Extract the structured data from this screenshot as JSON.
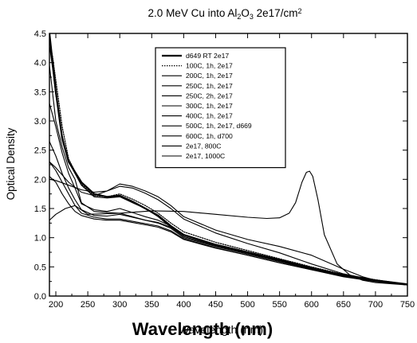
{
  "title": {
    "parts": [
      {
        "text": "2.0 MeV Cu into Al",
        "kind": "normal"
      },
      {
        "text": "2",
        "kind": "sub"
      },
      {
        "text": "O",
        "kind": "normal"
      },
      {
        "text": "3",
        "kind": "sub"
      },
      {
        "text": " 2e17/cm",
        "kind": "normal"
      },
      {
        "text": "2",
        "kind": "sup"
      }
    ]
  },
  "chart_data": {
    "type": "line",
    "title": "2.0 MeV Cu into Al2O3 2e17/cm2",
    "xlabel": "Wavelength (nm)",
    "xlabel_overprint": "Wavelength (nm)",
    "ylabel": "Optical Density",
    "xlim": [
      190,
      750
    ],
    "ylim": [
      0.0,
      4.5
    ],
    "xticks": [
      200,
      250,
      300,
      350,
      400,
      450,
      500,
      550,
      600,
      650,
      700,
      750
    ],
    "yticks": [
      0.0,
      0.5,
      1.0,
      1.5,
      2.0,
      2.5,
      3.0,
      3.5,
      4.0,
      4.5
    ],
    "ytick_labels": [
      "0.0",
      "0.5",
      "1.0",
      "1.5",
      "2.0",
      "2.5",
      "3.0",
      "3.5",
      "4.0",
      "4.5"
    ],
    "grid": false,
    "legend_position": "top-center",
    "line_color": "#000000",
    "series": [
      {
        "name": "d649 RT 2e17",
        "style": "solid-bold",
        "x": [
          190,
          195,
          200,
          210,
          220,
          240,
          260,
          280,
          300,
          320,
          340,
          360,
          380,
          400,
          450,
          500,
          550,
          600,
          650,
          700,
          750
        ],
        "y": [
          4.5,
          4.0,
          3.5,
          2.7,
          2.3,
          1.95,
          1.75,
          1.7,
          1.72,
          1.62,
          1.5,
          1.38,
          1.2,
          1.05,
          0.88,
          0.75,
          0.62,
          0.48,
          0.36,
          0.27,
          0.2
        ]
      },
      {
        "name": "100C, 1h, 2e17",
        "style": "dotted",
        "x": [
          190,
          195,
          200,
          210,
          220,
          240,
          260,
          280,
          300,
          320,
          340,
          360,
          380,
          400,
          450,
          500,
          550,
          600,
          650,
          700,
          750
        ],
        "y": [
          4.4,
          4.1,
          3.7,
          2.9,
          2.35,
          1.92,
          1.72,
          1.7,
          1.75,
          1.66,
          1.55,
          1.42,
          1.25,
          1.1,
          0.92,
          0.78,
          0.64,
          0.5,
          0.37,
          0.28,
          0.2
        ]
      },
      {
        "name": "200C, 1h, 2e17",
        "style": "solid",
        "x": [
          190,
          195,
          200,
          210,
          220,
          240,
          260,
          280,
          300,
          320,
          340,
          360,
          380,
          400,
          450,
          500,
          550,
          600,
          650,
          700,
          750
        ],
        "y": [
          4.3,
          3.9,
          3.45,
          2.75,
          2.3,
          1.9,
          1.7,
          1.68,
          1.7,
          1.6,
          1.5,
          1.36,
          1.18,
          1.05,
          0.88,
          0.75,
          0.61,
          0.48,
          0.36,
          0.27,
          0.2
        ]
      },
      {
        "name": "250C, 1h, 2e17",
        "style": "solid",
        "x": [
          190,
          200,
          210,
          220,
          230,
          240,
          260,
          280,
          300,
          320,
          340,
          360,
          380,
          400,
          450,
          500,
          550,
          600,
          650,
          700,
          750
        ],
        "y": [
          3.95,
          3.0,
          2.55,
          2.2,
          2.0,
          1.6,
          1.45,
          1.43,
          1.42,
          1.36,
          1.3,
          1.26,
          1.18,
          1.02,
          0.86,
          0.73,
          0.6,
          0.47,
          0.35,
          0.26,
          0.19
        ]
      },
      {
        "name": "250C, 2h, 2e17",
        "style": "solid",
        "x": [
          190,
          200,
          210,
          220,
          230,
          240,
          260,
          280,
          300,
          320,
          340,
          360,
          380,
          400,
          450,
          500,
          550,
          600,
          650,
          700,
          750
        ],
        "y": [
          3.3,
          2.9,
          2.45,
          2.1,
          1.85,
          1.58,
          1.48,
          1.45,
          1.5,
          1.43,
          1.36,
          1.3,
          1.2,
          1.04,
          0.88,
          0.75,
          0.61,
          0.48,
          0.36,
          0.27,
          0.2
        ]
      },
      {
        "name": "300C, 1h, 2e17",
        "style": "solid",
        "x": [
          190,
          200,
          210,
          220,
          230,
          240,
          260,
          280,
          300,
          320,
          340,
          360,
          380,
          400,
          450,
          500,
          550,
          600,
          650,
          700,
          750
        ],
        "y": [
          2.65,
          2.4,
          2.1,
          1.85,
          1.65,
          1.48,
          1.38,
          1.37,
          1.4,
          1.35,
          1.3,
          1.25,
          1.16,
          1.0,
          0.85,
          0.72,
          0.59,
          0.46,
          0.34,
          0.26,
          0.19
        ]
      },
      {
        "name": "400C, 1h, 2e17",
        "style": "solid",
        "x": [
          190,
          200,
          210,
          220,
          230,
          240,
          260,
          280,
          300,
          320,
          340,
          360,
          380,
          400,
          450,
          500,
          550,
          600,
          650,
          700,
          750
        ],
        "y": [
          2.3,
          2.15,
          1.95,
          1.75,
          1.55,
          1.42,
          1.35,
          1.32,
          1.32,
          1.28,
          1.24,
          1.2,
          1.12,
          0.98,
          0.83,
          0.7,
          0.57,
          0.45,
          0.34,
          0.25,
          0.19
        ]
      },
      {
        "name": "500C, 1h, 2e17, d669",
        "style": "solid",
        "x": [
          190,
          200,
          210,
          220,
          230,
          240,
          260,
          280,
          300,
          320,
          340,
          360,
          380,
          400,
          450,
          500,
          550,
          600,
          650,
          700,
          750
        ],
        "y": [
          2.05,
          1.95,
          1.75,
          1.58,
          1.45,
          1.38,
          1.32,
          1.3,
          1.3,
          1.26,
          1.22,
          1.18,
          1.1,
          0.97,
          0.82,
          0.7,
          0.57,
          0.45,
          0.33,
          0.25,
          0.19
        ]
      },
      {
        "name": "600C, 1h, d700",
        "style": "solid",
        "x": [
          190,
          200,
          220,
          240,
          260,
          280,
          300,
          320,
          340,
          360,
          380,
          400,
          450,
          500,
          550,
          600,
          650,
          700,
          750
        ],
        "y": [
          2.0,
          1.98,
          1.9,
          1.82,
          1.78,
          1.8,
          1.88,
          1.85,
          1.76,
          1.65,
          1.5,
          1.32,
          1.08,
          0.9,
          0.74,
          0.55,
          0.38,
          0.27,
          0.2
        ]
      },
      {
        "name": "2e17, 800C",
        "style": "solid",
        "x": [
          190,
          200,
          220,
          240,
          260,
          280,
          300,
          320,
          340,
          360,
          380,
          400,
          450,
          500,
          550,
          600,
          650,
          680,
          700,
          750
        ],
        "y": [
          2.3,
          2.2,
          1.95,
          1.78,
          1.72,
          1.8,
          1.92,
          1.88,
          1.8,
          1.7,
          1.55,
          1.36,
          1.13,
          0.97,
          0.85,
          0.7,
          0.46,
          0.33,
          0.27,
          0.2
        ]
      },
      {
        "name": "2e17, 1000C",
        "style": "solid",
        "x": [
          190,
          200,
          215,
          230,
          250,
          300,
          350,
          400,
          450,
          500,
          530,
          550,
          565,
          575,
          585,
          592,
          597,
          602,
          610,
          620,
          640,
          660,
          680,
          700,
          750
        ],
        "y": [
          1.3,
          1.4,
          1.5,
          1.55,
          1.4,
          1.42,
          1.46,
          1.45,
          1.4,
          1.35,
          1.33,
          1.34,
          1.42,
          1.6,
          1.95,
          2.12,
          2.14,
          2.05,
          1.65,
          1.05,
          0.55,
          0.36,
          0.27,
          0.23,
          0.19
        ]
      }
    ]
  }
}
